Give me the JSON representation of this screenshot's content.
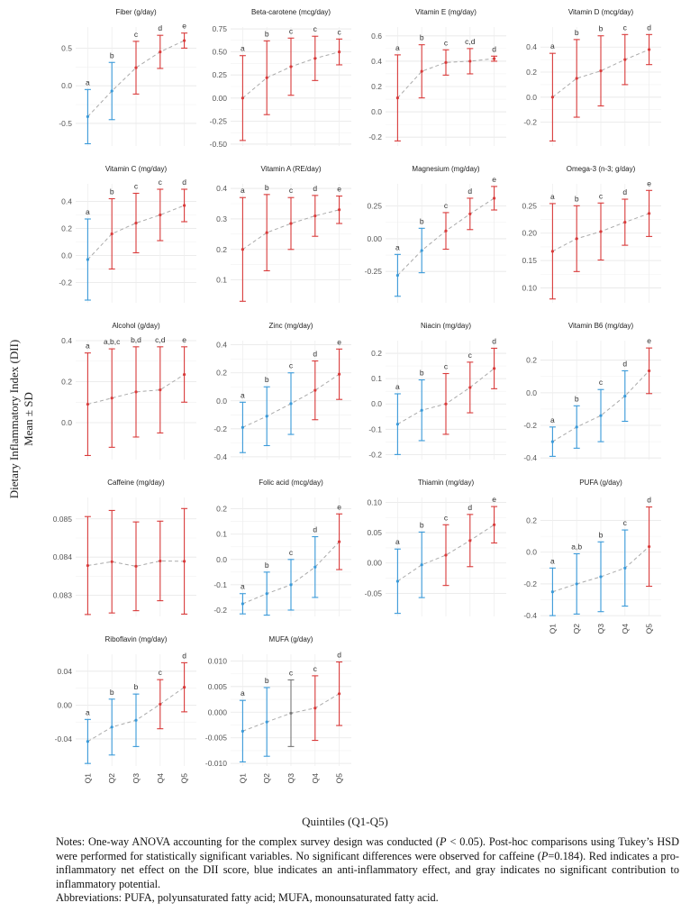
{
  "figure": {
    "y_axis_label_line1": "Dietary Inflammatory Index (DII)",
    "y_axis_label_line2": "Mean ± SD",
    "x_axis_label": "Quintiles (Q1-Q5)",
    "colors": {
      "pro": "#d93b3b",
      "anti": "#3a9ad9",
      "none": "#777777",
      "trend": "#aaaaaa"
    }
  },
  "notes": {
    "prefix": "Notes: One-way ANOVA accounting for the complex survey design was conducted (",
    "p_sym": "P",
    "mid": " < 0.05). Post-hoc comparisons using Tukey’s HSD were performed for statistically significant variables. No significant differences were observed for caffeine (",
    "p_sym2": "P",
    "tail": "=0.184). Red indicates a pro-inflammatory net effect on the DII score, blue indicates an anti-inflammatory effect, and gray indicates no significant contribution to inflammatory potential.",
    "abbreviations": "Abbreviations: PUFA, polyunsaturated fatty acid; MUFA, monounsaturated fatty acid."
  },
  "chart_data": [
    {
      "type": "scatter",
      "title": "Fiber (g/day)",
      "x": [
        "Q1",
        "Q2",
        "Q3",
        "Q4",
        "Q5"
      ],
      "y": [
        -0.41,
        -0.07,
        0.24,
        0.45,
        0.6
      ],
      "sd": [
        0.36,
        0.38,
        0.35,
        0.22,
        0.1
      ],
      "colors": [
        "anti",
        "anti",
        "pro",
        "pro",
        "pro"
      ],
      "letters": [
        "a",
        "b",
        "c",
        "d",
        "e"
      ],
      "ylim": [
        -0.8,
        0.78
      ],
      "ticks": [
        -0.5,
        0.0,
        0.5
      ]
    },
    {
      "type": "scatter",
      "title": "Beta-carotene (mcg/day)",
      "x": [
        "Q1",
        "Q2",
        "Q3",
        "Q4",
        "Q5"
      ],
      "y": [
        0.0,
        0.22,
        0.34,
        0.43,
        0.5
      ],
      "sd": [
        0.46,
        0.4,
        0.31,
        0.24,
        0.14
      ],
      "colors": [
        "pro",
        "pro",
        "pro",
        "pro",
        "pro"
      ],
      "letters": [
        "a",
        "b",
        "c",
        "c",
        "c"
      ],
      "ylim": [
        -0.52,
        0.77
      ],
      "ticks": [
        -0.5,
        -0.25,
        0.0,
        0.25,
        0.5,
        0.75
      ]
    },
    {
      "type": "scatter",
      "title": "Vitamin E (mg/day)",
      "x": [
        "Q1",
        "Q2",
        "Q3",
        "Q4",
        "Q5"
      ],
      "y": [
        0.11,
        0.32,
        0.39,
        0.4,
        0.42
      ],
      "sd": [
        0.34,
        0.21,
        0.1,
        0.1,
        0.02
      ],
      "colors": [
        "pro",
        "pro",
        "pro",
        "pro",
        "pro"
      ],
      "letters": [
        "a",
        "b",
        "c",
        "c,d",
        "d"
      ],
      "ylim": [
        -0.27,
        0.67
      ],
      "ticks": [
        -0.2,
        0.0,
        0.2,
        0.4,
        0.6
      ]
    },
    {
      "type": "scatter",
      "title": "Vitamin D (mcg/day)",
      "x": [
        "Q1",
        "Q2",
        "Q3",
        "Q4",
        "Q5"
      ],
      "y": [
        0.0,
        0.15,
        0.21,
        0.3,
        0.38
      ],
      "sd": [
        0.35,
        0.31,
        0.28,
        0.2,
        0.12
      ],
      "colors": [
        "pro",
        "pro",
        "pro",
        "pro",
        "pro"
      ],
      "letters": [
        "a",
        "b",
        "b",
        "c",
        "d"
      ],
      "ylim": [
        -0.39,
        0.56
      ],
      "ticks": [
        -0.2,
        0.0,
        0.2,
        0.4
      ]
    },
    {
      "type": "scatter",
      "title": "Vitamin C (mg/day)",
      "x": [
        "Q1",
        "Q2",
        "Q3",
        "Q4",
        "Q5"
      ],
      "y": [
        -0.03,
        0.16,
        0.24,
        0.3,
        0.37
      ],
      "sd": [
        0.3,
        0.26,
        0.22,
        0.19,
        0.12
      ],
      "colors": [
        "anti",
        "pro",
        "pro",
        "pro",
        "pro"
      ],
      "letters": [
        "a",
        "b",
        "c",
        "c",
        "d"
      ],
      "ylim": [
        -0.35,
        0.53
      ],
      "ticks": [
        -0.2,
        0.0,
        0.2,
        0.4
      ]
    },
    {
      "type": "scatter",
      "title": "Vitamin A (RE/day)",
      "x": [
        "Q1",
        "Q2",
        "Q3",
        "Q4",
        "Q5"
      ],
      "y": [
        0.2,
        0.255,
        0.285,
        0.31,
        0.33
      ],
      "sd": [
        0.17,
        0.125,
        0.085,
        0.067,
        0.045
      ],
      "colors": [
        "pro",
        "pro",
        "pro",
        "pro",
        "pro"
      ],
      "letters": [
        "a",
        "b",
        "c",
        "d",
        "e"
      ],
      "ylim": [
        0.025,
        0.415
      ],
      "ticks": [
        0.1,
        0.2,
        0.3,
        0.4
      ]
    },
    {
      "type": "scatter",
      "title": "Magnesium (mg/day)",
      "x": [
        "Q1",
        "Q2",
        "Q3",
        "Q4",
        "Q5"
      ],
      "y": [
        -0.28,
        -0.09,
        0.06,
        0.19,
        0.31
      ],
      "sd": [
        0.16,
        0.17,
        0.14,
        0.12,
        0.09
      ],
      "colors": [
        "anti",
        "anti",
        "pro",
        "pro",
        "pro"
      ],
      "letters": [
        "a",
        "b",
        "c",
        "d",
        "e"
      ],
      "ylim": [
        -0.49,
        0.42
      ],
      "ticks": [
        -0.25,
        0.0,
        0.25
      ]
    },
    {
      "type": "scatter",
      "title": "Omega-3 (n-3; g/day)",
      "x": [
        "Q1",
        "Q2",
        "Q3",
        "Q4",
        "Q5"
      ],
      "y": [
        0.167,
        0.19,
        0.203,
        0.22,
        0.236
      ],
      "sd": [
        0.087,
        0.06,
        0.052,
        0.042,
        0.042
      ],
      "colors": [
        "pro",
        "pro",
        "pro",
        "pro",
        "pro"
      ],
      "letters": [
        "a",
        "b",
        "c",
        "d",
        "e"
      ],
      "ylim": [
        0.073,
        0.29
      ],
      "ticks": [
        0.1,
        0.15,
        0.2,
        0.25
      ]
    },
    {
      "type": "scatter",
      "title": "Alcohol (g/day)",
      "x": [
        "Q1",
        "Q2",
        "Q3",
        "Q4",
        "Q5"
      ],
      "y": [
        0.09,
        0.12,
        0.15,
        0.16,
        0.235
      ],
      "sd": [
        0.25,
        0.24,
        0.22,
        0.21,
        0.135
      ],
      "colors": [
        "pro",
        "pro",
        "pro",
        "pro",
        "pro"
      ],
      "letters": [
        "a",
        "a,b,c",
        "b,d",
        "c,d",
        "e"
      ],
      "ylim": [
        -0.18,
        0.4
      ],
      "ticks": [
        0.0,
        0.2,
        0.4
      ]
    },
    {
      "type": "scatter",
      "title": "Zinc (mg/day)",
      "x": [
        "Q1",
        "Q2",
        "Q3",
        "Q4",
        "Q5"
      ],
      "y": [
        -0.19,
        -0.11,
        -0.02,
        0.075,
        0.19
      ],
      "sd": [
        0.18,
        0.21,
        0.22,
        0.21,
        0.18
      ],
      "colors": [
        "anti",
        "anti",
        "anti",
        "pro",
        "pro"
      ],
      "letters": [
        "a",
        "b",
        "c",
        "d",
        "e"
      ],
      "ylim": [
        -0.42,
        0.43
      ],
      "ticks": [
        -0.4,
        -0.2,
        0.0,
        0.2,
        0.4
      ]
    },
    {
      "type": "scatter",
      "title": "Niacin (mg/day)",
      "x": [
        "Q1",
        "Q2",
        "Q3",
        "Q4",
        "Q5"
      ],
      "y": [
        -0.08,
        -0.025,
        0.0,
        0.065,
        0.14
      ],
      "sd": [
        0.12,
        0.12,
        0.12,
        0.1,
        0.08
      ],
      "colors": [
        "anti",
        "anti",
        "pro",
        "pro",
        "pro"
      ],
      "letters": [
        "a",
        "b",
        "c",
        "c",
        "d"
      ],
      "ylim": [
        -0.22,
        0.25
      ],
      "ticks": [
        -0.2,
        -0.1,
        0.0,
        0.1,
        0.2
      ]
    },
    {
      "type": "scatter",
      "title": "Vitamin B6 (mg/day)",
      "x": [
        "Q1",
        "Q2",
        "Q3",
        "Q4",
        "Q5"
      ],
      "y": [
        -0.3,
        -0.21,
        -0.14,
        -0.02,
        0.135
      ],
      "sd": [
        0.09,
        0.13,
        0.16,
        0.155,
        0.14
      ],
      "colors": [
        "anti",
        "anti",
        "anti",
        "anti",
        "pro"
      ],
      "letters": [
        "a",
        "b",
        "c",
        "d",
        "e"
      ],
      "ylim": [
        -0.41,
        0.32
      ],
      "ticks": [
        -0.4,
        -0.2,
        0.0,
        0.2
      ]
    },
    {
      "type": "scatter",
      "title": "Caffeine (mg/day)",
      "x": [
        "Q1",
        "Q2",
        "Q3",
        "Q4",
        "Q5"
      ],
      "y": [
        0.08378,
        0.08388,
        0.08376,
        0.0839,
        0.08389
      ],
      "sd": [
        0.00128,
        0.00134,
        0.00116,
        0.00104,
        0.00138
      ],
      "colors": [
        "pro",
        "pro",
        "pro",
        "pro",
        "pro"
      ],
      "letters": [
        "",
        "",
        "",
        "",
        ""
      ],
      "ylim": [
        0.08245,
        0.08556
      ],
      "ticks": [
        0.083,
        0.084,
        0.085
      ]
    },
    {
      "type": "scatter",
      "title": "Folic acid (mcg/day)",
      "x": [
        "Q1",
        "Q2",
        "Q3",
        "Q4",
        "Q5"
      ],
      "y": [
        -0.175,
        -0.135,
        -0.1,
        -0.03,
        0.07
      ],
      "sd": [
        0.04,
        0.085,
        0.1,
        0.12,
        0.11
      ],
      "colors": [
        "anti",
        "anti",
        "anti",
        "anti",
        "pro"
      ],
      "letters": [
        "a",
        "b",
        "c",
        "d",
        "e"
      ],
      "ylim": [
        -0.225,
        0.245
      ],
      "ticks": [
        -0.2,
        -0.1,
        0.0,
        0.1,
        0.2
      ]
    },
    {
      "type": "scatter",
      "title": "Thiamin (mg/day)",
      "x": [
        "Q1",
        "Q2",
        "Q3",
        "Q4",
        "Q5"
      ],
      "y": [
        -0.03,
        -0.003,
        0.013,
        0.037,
        0.063
      ],
      "sd": [
        0.053,
        0.054,
        0.05,
        0.043,
        0.03
      ],
      "colors": [
        "anti",
        "anti",
        "pro",
        "pro",
        "pro"
      ],
      "letters": [
        "a",
        "b",
        "c",
        "d",
        "e"
      ],
      "ylim": [
        -0.088,
        0.108
      ],
      "ticks": [
        -0.05,
        0.0,
        0.05,
        0.1
      ]
    },
    {
      "type": "scatter",
      "title": "PUFA (g/day)",
      "x": [
        "Q1",
        "Q2",
        "Q3",
        "Q4",
        "Q5"
      ],
      "y": [
        -0.25,
        -0.2,
        -0.155,
        -0.1,
        0.035
      ],
      "sd": [
        0.15,
        0.19,
        0.22,
        0.24,
        0.25
      ],
      "colors": [
        "anti",
        "anti",
        "anti",
        "anti",
        "pro"
      ],
      "letters": [
        "a",
        "a,b",
        "b",
        "c",
        "d"
      ],
      "ylim": [
        -0.405,
        0.345
      ],
      "ticks": [
        -0.4,
        -0.2,
        0.0,
        0.2
      ]
    },
    {
      "type": "scatter",
      "title": "Riboflavin (mg/day)",
      "x": [
        "Q1",
        "Q2",
        "Q3",
        "Q4",
        "Q5"
      ],
      "y": [
        -0.043,
        -0.026,
        -0.018,
        0.001,
        0.021
      ],
      "sd": [
        0.026,
        0.033,
        0.031,
        0.029,
        0.029
      ],
      "colors": [
        "anti",
        "anti",
        "anti",
        "pro",
        "pro"
      ],
      "letters": [
        "a",
        "b",
        "b",
        "c",
        "d"
      ],
      "ylim": [
        -0.072,
        0.06
      ],
      "ticks": [
        -0.04,
        0.0,
        0.04
      ]
    },
    {
      "type": "scatter",
      "title": "MUFA (g/day)",
      "x": [
        "Q1",
        "Q2",
        "Q3",
        "Q4",
        "Q5"
      ],
      "y": [
        -0.0037,
        -0.0019,
        -0.0002,
        0.0008,
        0.0036
      ],
      "sd": [
        0.006,
        0.0067,
        0.0065,
        0.0063,
        0.0062
      ],
      "colors": [
        "anti",
        "anti",
        "none",
        "pro",
        "pro"
      ],
      "letters": [
        "a",
        "b",
        "c",
        "c",
        "d"
      ],
      "ylim": [
        -0.0105,
        0.0113
      ],
      "ticks": [
        -0.01,
        -0.005,
        0.0,
        0.005,
        0.01
      ]
    }
  ]
}
